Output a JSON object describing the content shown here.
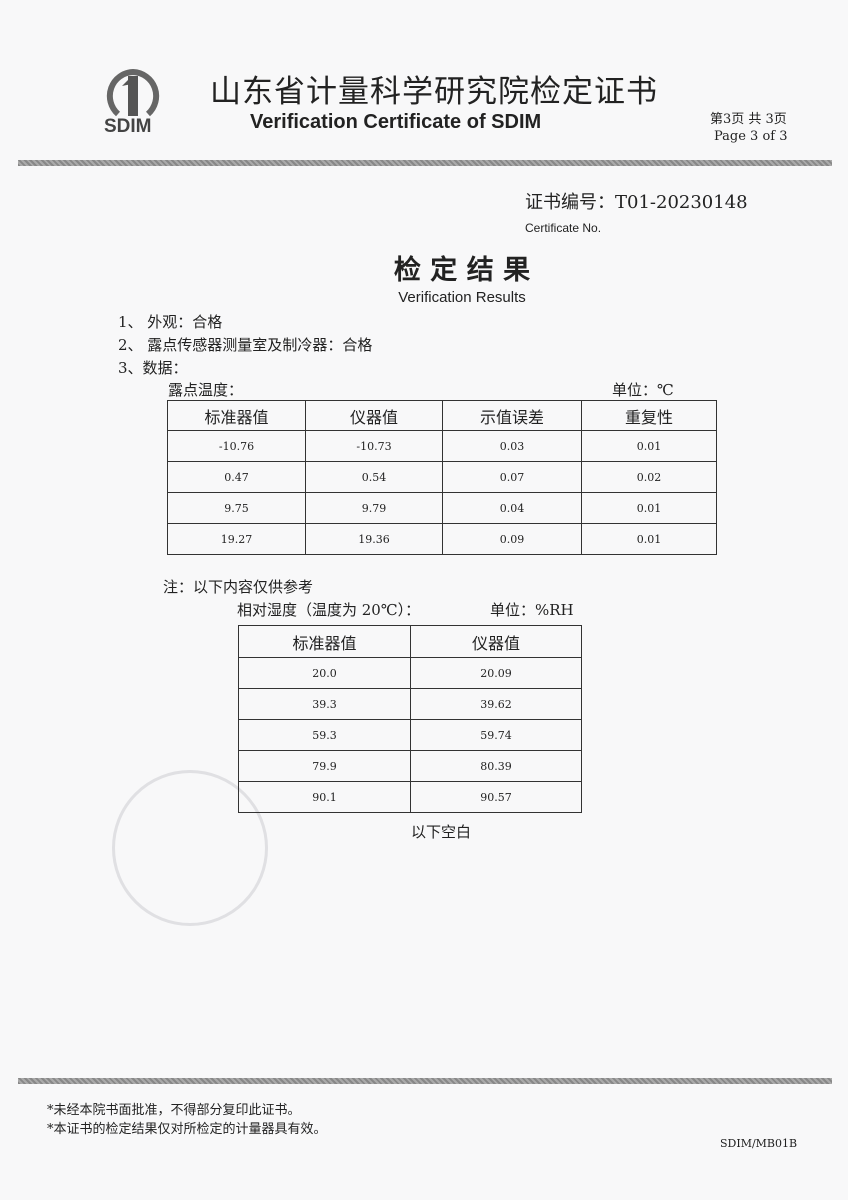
{
  "header": {
    "logo_text": "SDIM",
    "title_cn": "山东省计量科学研究院检定证书",
    "title_en": "Verification Certificate of SDIM",
    "page_cn": "第3页 共 3页",
    "page_en": "Page 3  of 3"
  },
  "certificate": {
    "label_cn": "证书编号：",
    "number": "T01-20230148",
    "label_en": "Certificate No."
  },
  "section": {
    "title_cn": "检 定 结 果",
    "title_en": "Verification Results"
  },
  "items": [
    "1、 外观：合格",
    "2、 露点传感器测量室及制冷器：合格",
    "3、数据："
  ],
  "dewpoint": {
    "caption": "露点温度：",
    "unit": "单位：℃",
    "headers": [
      "标准器值",
      "仪器值",
      "示值误差",
      "重复性"
    ],
    "rows": [
      [
        "-10.76",
        "-10.73",
        "0.03",
        "0.01"
      ],
      [
        "0.47",
        "0.54",
        "0.07",
        "0.02"
      ],
      [
        "9.75",
        "9.79",
        "0.04",
        "0.01"
      ],
      [
        "19.27",
        "19.36",
        "0.09",
        "0.01"
      ]
    ]
  },
  "note": "注：以下内容仅供参考",
  "humidity": {
    "caption": "相对湿度（温度为 20℃）：",
    "unit": "单位：%RH",
    "headers": [
      "标准器值",
      "仪器值"
    ],
    "rows": [
      [
        "20.0",
        "20.09"
      ],
      [
        "39.3",
        "39.62"
      ],
      [
        "59.3",
        "59.74"
      ],
      [
        "79.9",
        "80.39"
      ],
      [
        "90.1",
        "90.57"
      ]
    ]
  },
  "end_mark": "以下空白",
  "footer": {
    "notes": [
      "*未经本院书面批准，不得部分复印此证书。",
      "*本证书的检定结果仅对所检定的计量器具有效。"
    ],
    "form_code": "SDIM/MB01B"
  }
}
